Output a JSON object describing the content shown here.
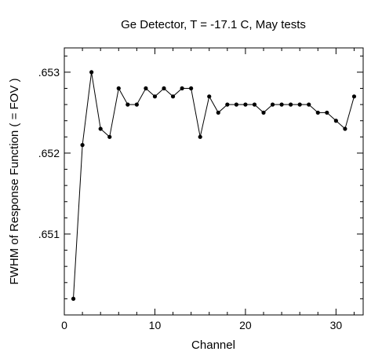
{
  "chart_data": {
    "type": "line",
    "title": "Ge Detector, T = -17.1 C, May tests",
    "xlabel": "Channel",
    "ylabel": "FWHM of Response Function ( = FOV )",
    "xlim": [
      0,
      33
    ],
    "ylim": [
      0.65,
      0.6533
    ],
    "x_ticks": [
      0,
      10,
      20,
      30
    ],
    "x_tick_labels": [
      "0",
      "10",
      "20",
      "30"
    ],
    "y_ticks": [
      0.651,
      0.652,
      0.653
    ],
    "y_tick_labels": [
      ".651",
      ".652",
      ".653"
    ],
    "grid": false,
    "legend": "none",
    "line_color": "#000000",
    "marker": "filled-circle",
    "series": [
      {
        "x": [
          1,
          2,
          3,
          4,
          5,
          6,
          7,
          8,
          9,
          10,
          11,
          12,
          13,
          14,
          15,
          16,
          17,
          18,
          19,
          20,
          21,
          22,
          23,
          24,
          25,
          26,
          27,
          28,
          29,
          30,
          31,
          32
        ],
        "values": [
          0.6502,
          0.6521,
          0.653,
          0.6523,
          0.6522,
          0.6528,
          0.6526,
          0.6526,
          0.6528,
          0.6527,
          0.6528,
          0.6527,
          0.6528,
          0.6528,
          0.6522,
          0.6527,
          0.6525,
          0.6526,
          0.6526,
          0.6526,
          0.6526,
          0.6525,
          0.6526,
          0.6526,
          0.6526,
          0.6526,
          0.6526,
          0.6525,
          0.6525,
          0.6524,
          0.6523,
          0.6527
        ]
      }
    ]
  }
}
